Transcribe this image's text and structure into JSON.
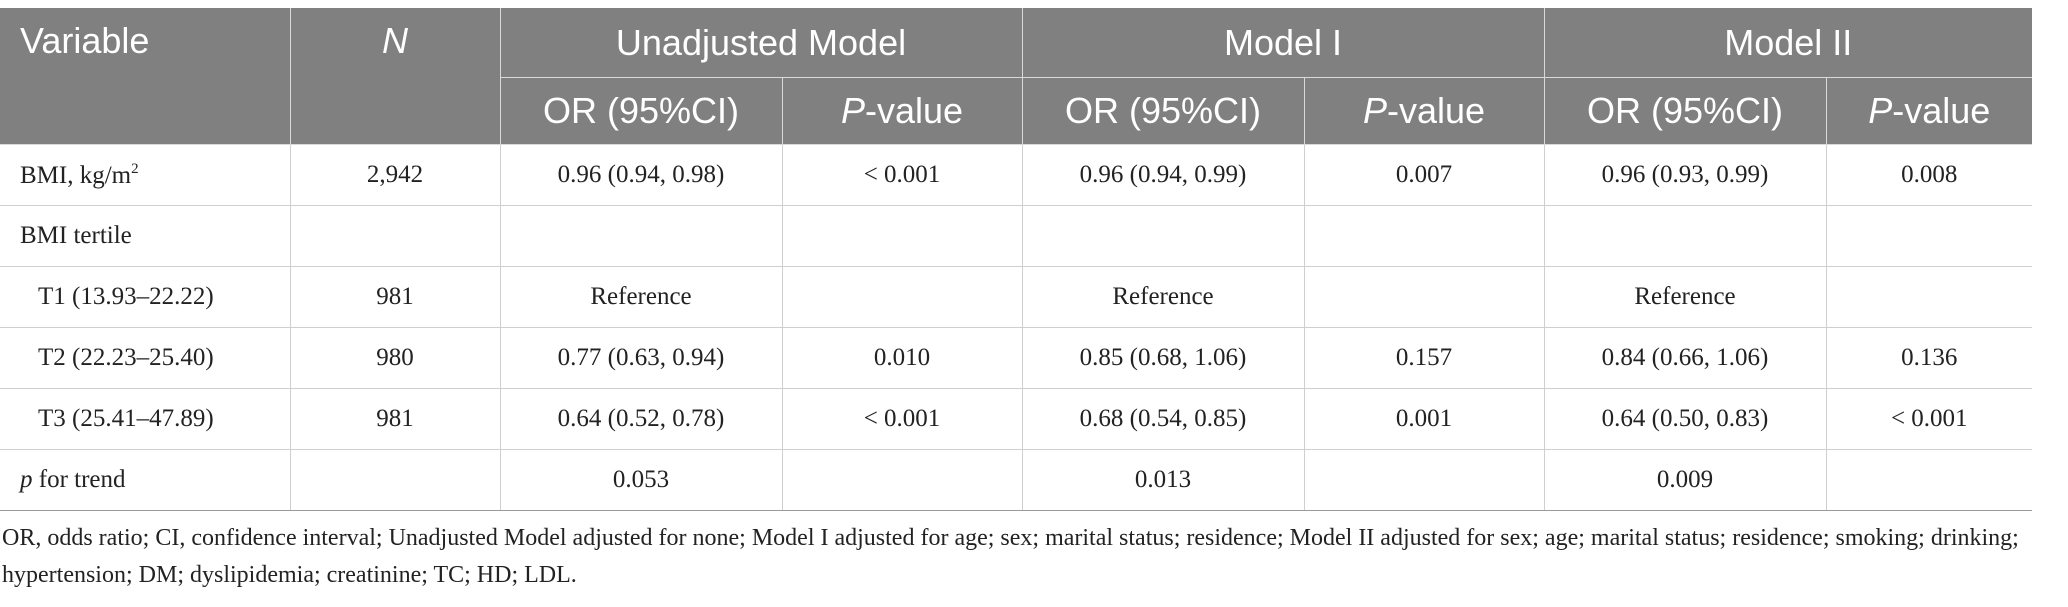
{
  "header": {
    "variable": "Variable",
    "n": "N",
    "groups": [
      "Unadjusted Model",
      "Model I",
      "Model II"
    ],
    "or_label": "OR (95%CI)",
    "p_italic": "P",
    "p_suffix": "-value"
  },
  "rows": [
    {
      "label": "BMI, kg/m",
      "label_sup": "2",
      "n": "2,942",
      "c1": "0.96 (0.94, 0.98)",
      "c2": "< 0.001",
      "c3": "0.96 (0.94, 0.99)",
      "c4": "0.007",
      "c5": "0.96 (0.93, 0.99)",
      "c6": "0.008"
    },
    {
      "label": "BMI tertile",
      "n": "",
      "c1": "",
      "c2": "",
      "c3": "",
      "c4": "",
      "c5": "",
      "c6": ""
    },
    {
      "label": "T1 (13.93–22.22)",
      "n": "981",
      "c1": "Reference",
      "c2": "",
      "c3": "Reference",
      "c4": "",
      "c5": "Reference",
      "c6": ""
    },
    {
      "label": "T2 (22.23–25.40)",
      "n": "980",
      "c1": "0.77 (0.63, 0.94)",
      "c2": "0.010",
      "c3": "0.85 (0.68, 1.06)",
      "c4": "0.157",
      "c5": "0.84 (0.66, 1.06)",
      "c6": "0.136"
    },
    {
      "label": "T3 (25.41–47.89)",
      "n": "981",
      "c1": "0.64 (0.52, 0.78)",
      "c2": "< 0.001",
      "c3": "0.68 (0.54, 0.85)",
      "c4": "0.001",
      "c5": "0.64 (0.50, 0.83)",
      "c6": "< 0.001"
    },
    {
      "label_italic": "p",
      "label": " for trend",
      "n": "",
      "c1": "0.053",
      "c2": "",
      "c3": "0.013",
      "c4": "",
      "c5": "0.009",
      "c6": ""
    }
  ],
  "footnote": "OR, odds ratio; CI, confidence interval; Unadjusted Model adjusted for none; Model I adjusted for age; sex; marital status; residence; Model II adjusted for sex; age; marital status; residence; smoking; drinking; hypertension; DM; dyslipidemia; creatinine; TC; HD; LDL."
}
